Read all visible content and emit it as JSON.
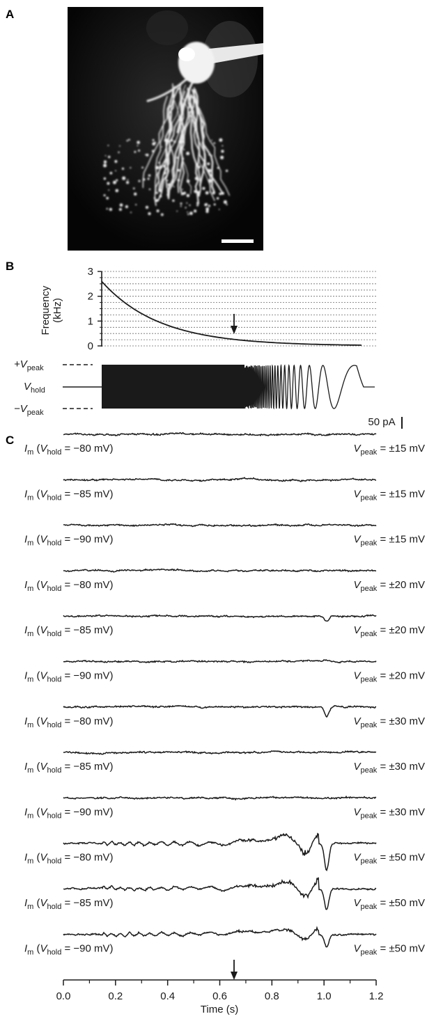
{
  "panels": {
    "a": "A",
    "b": "B",
    "c": "C"
  },
  "micrograph": {
    "description_icon": "neuron-micrograph-icon"
  },
  "frequency_plot": {
    "ylabel_line1": "Frequency",
    "ylabel_line2": "(kHz)",
    "yticks": [
      "3",
      "2",
      "1",
      "0"
    ],
    "ylim": [
      0,
      3
    ],
    "grid": "dotted",
    "start_khz": 2.6,
    "end_khz": 0
  },
  "voltage_stimulus": {
    "plus_peak_sign": "+V",
    "plus_peak_sub": "peak",
    "hold_main": "V",
    "hold_sub": "hold",
    "minus_peak_sign": "−V",
    "minus_peak_sub": "peak"
  },
  "scale_bar_label": "50 pA",
  "trace_label_parts": {
    "im": "I",
    "im_sub": "m",
    "open": " (",
    "v": "V",
    "hold_sub": "hold",
    "eq": " = ",
    "close": ")",
    "vpeak_sub": "peak"
  },
  "chart_data": {
    "type": "line",
    "title": "",
    "xlabel": "Time (s)",
    "ylabel": "",
    "xlim": [
      0.0,
      1.2
    ],
    "xticks": [
      "0.0",
      "0.2",
      "0.4",
      "0.6",
      "0.8",
      "1.0",
      "1.2"
    ],
    "arrow_time_s": 0.66,
    "series": [
      {
        "hold": "−80 mV",
        "peak": "±15 mV",
        "dip": 0
      },
      {
        "hold": "−85 mV",
        "peak": "±15 mV",
        "dip": 0
      },
      {
        "hold": "−90 mV",
        "peak": "±15 mV",
        "dip": 0
      },
      {
        "hold": "−80 mV",
        "peak": "±20 mV",
        "dip": 0
      },
      {
        "hold": "−85 mV",
        "peak": "±20 mV",
        "dip": 0.2
      },
      {
        "hold": "−90 mV",
        "peak": "±20 mV",
        "dip": 0
      },
      {
        "hold": "−80 mV",
        "peak": "±30 mV",
        "dip": 0.35
      },
      {
        "hold": "−85 mV",
        "peak": "±30 mV",
        "dip": 0
      },
      {
        "hold": "−90 mV",
        "peak": "±30 mV",
        "dip": 0
      },
      {
        "hold": "−80 mV",
        "peak": "±50 mV",
        "dip": 1.0
      },
      {
        "hold": "−85 mV",
        "peak": "±50 mV",
        "dip": 0.8
      },
      {
        "hold": "−90 mV",
        "peak": "±50 mV",
        "dip": 0.45
      }
    ]
  }
}
